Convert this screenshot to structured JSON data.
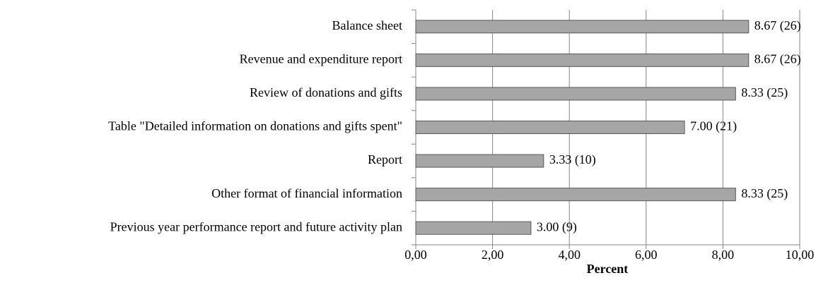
{
  "chart_data": {
    "type": "barh",
    "categories": [
      "Balance sheet",
      "Revenue and expenditure report",
      "Review of donations and gifts",
      "Table \"Detailed information on donations and gifts spent\"",
      "Report",
      "Other format of financial information",
      "Previous year performance report and future activity plan"
    ],
    "values": [
      8.67,
      8.67,
      8.33,
      7.0,
      3.33,
      8.33,
      3.0
    ],
    "value_labels": [
      "8.67 (26)",
      "8.67 (26)",
      "8.33 (25)",
      "7.00 (21)",
      "3.33 (10)",
      "8.33 (25)",
      "3.00 (9)"
    ],
    "color": "#a6a6a6",
    "xlabel": "Percent",
    "xlim": [
      0,
      10
    ],
    "xticks": [
      {
        "value": 0,
        "label": "0,00"
      },
      {
        "value": 2,
        "label": "2,00"
      },
      {
        "value": 4,
        "label": "4,00"
      },
      {
        "value": 6,
        "label": "6,00"
      },
      {
        "value": 8,
        "label": "8,00"
      },
      {
        "value": 10,
        "label": "10,00"
      }
    ],
    "grid": true
  }
}
